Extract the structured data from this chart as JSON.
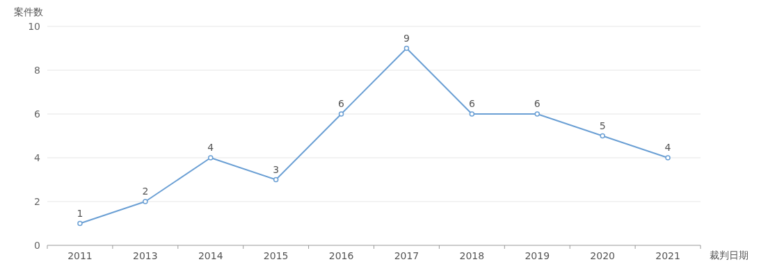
{
  "chart_data": {
    "type": "line",
    "ylabel": "案件数",
    "xlabel": "裁判日期",
    "categories": [
      "2011",
      "2013",
      "2014",
      "2015",
      "2016",
      "2017",
      "2018",
      "2019",
      "2020",
      "2021"
    ],
    "series": [
      {
        "color": "#6a9fd4",
        "values": [
          1,
          2,
          4,
          3,
          6,
          9,
          6,
          6,
          5,
          4
        ]
      }
    ],
    "ylim": [
      0,
      10
    ],
    "yticks": [
      0,
      2,
      4,
      6,
      8,
      10
    ],
    "grid": "y",
    "marker": "circle",
    "data_labels": true
  }
}
